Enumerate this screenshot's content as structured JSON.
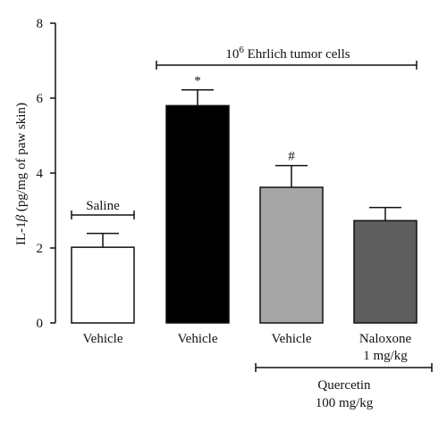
{
  "chart_data": {
    "type": "bar",
    "title": "",
    "xlabel": "",
    "ylabel": "IL-1β (pg/mg of paw skin)",
    "ylabel_parts": {
      "prefix": "IL-1",
      "greek": "β",
      "suffix": " (pg/mg of paw skin)"
    },
    "ylim": [
      0,
      8
    ],
    "yticks": [
      "0",
      "2",
      "4",
      "6",
      "8"
    ],
    "categories": [
      "Vehicle",
      "Vehicle",
      "Vehicle",
      "Naloxone 1 mg/kg"
    ],
    "category_lines": [
      [
        "Vehicle"
      ],
      [
        "Vehicle"
      ],
      [
        "Vehicle"
      ],
      [
        "Naloxone",
        "1 mg/kg"
      ]
    ],
    "values": [
      2.02,
      5.8,
      3.62,
      2.73
    ],
    "errors": [
      0.37,
      0.42,
      0.58,
      0.35
    ],
    "bar_colors": [
      "#ffffff",
      "#000000",
      "#a6a6a6",
      "#5e5e5e"
    ],
    "significance": [
      "",
      "*",
      "#",
      ""
    ],
    "grid": false,
    "annotations": {
      "saline": "Saline",
      "tumor_base": "10",
      "tumor_exp": "6",
      "tumor_rest": " Ehrlich tumor cells",
      "quercetin_line1": "Quercetin",
      "quercetin_line2": "100 mg/kg"
    }
  }
}
